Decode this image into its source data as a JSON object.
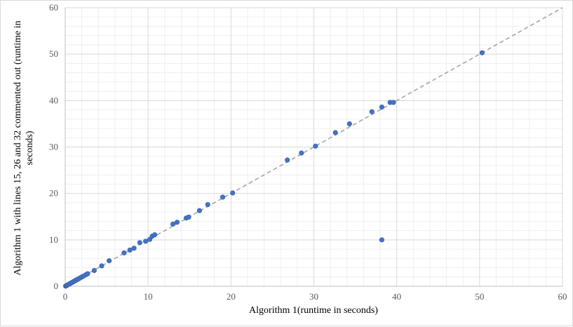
{
  "chart_data": {
    "type": "scatter",
    "title": "",
    "xlabel": "Algorithm 1(runtime in seconds)",
    "ylabel_lines": [
      "Algorithm 1 with lines 15, 26 and 32 commented out (runtime in",
      "seconds)"
    ],
    "xlim": [
      0,
      60
    ],
    "ylim": [
      0,
      60
    ],
    "major_step": 10,
    "minor_step": 2,
    "grid": true,
    "legend": "none",
    "marker_color": "#4472c4",
    "reference_line": {
      "style": "dashed",
      "color": "#a6a6a6",
      "from": [
        0,
        0
      ],
      "to": [
        60,
        60
      ]
    },
    "x_ticks": [
      "0",
      "10",
      "20",
      "30",
      "40",
      "50",
      "60"
    ],
    "y_ticks": [
      "0",
      "10",
      "20",
      "30",
      "40",
      "50",
      "60"
    ],
    "points": [
      [
        0.05,
        0.05
      ],
      [
        0.1,
        0.1
      ],
      [
        0.15,
        0.15
      ],
      [
        0.2,
        0.2
      ],
      [
        0.3,
        0.3
      ],
      [
        0.4,
        0.4
      ],
      [
        0.5,
        0.5
      ],
      [
        0.6,
        0.6
      ],
      [
        0.7,
        0.7
      ],
      [
        0.8,
        0.8
      ],
      [
        0.9,
        0.9
      ],
      [
        1.0,
        1.0
      ],
      [
        1.1,
        1.1
      ],
      [
        1.2,
        1.2
      ],
      [
        1.3,
        1.3
      ],
      [
        1.4,
        1.4
      ],
      [
        1.5,
        1.5
      ],
      [
        1.6,
        1.6
      ],
      [
        1.8,
        1.8
      ],
      [
        2.0,
        2.0
      ],
      [
        2.2,
        2.2
      ],
      [
        2.5,
        2.5
      ],
      [
        2.7,
        2.7
      ],
      [
        3.5,
        3.4
      ],
      [
        4.4,
        4.4
      ],
      [
        5.3,
        5.5
      ],
      [
        7.1,
        7.2
      ],
      [
        7.8,
        7.8
      ],
      [
        8.3,
        8.2
      ],
      [
        9.0,
        9.4
      ],
      [
        9.7,
        9.7
      ],
      [
        10.2,
        10.1
      ],
      [
        10.5,
        10.8
      ],
      [
        10.8,
        11.1
      ],
      [
        13.0,
        13.4
      ],
      [
        13.5,
        13.8
      ],
      [
        14.6,
        14.7
      ],
      [
        14.9,
        14.9
      ],
      [
        16.2,
        16.3
      ],
      [
        17.2,
        17.6
      ],
      [
        19.0,
        19.2
      ],
      [
        20.2,
        20.1
      ],
      [
        26.8,
        27.2
      ],
      [
        28.5,
        28.7
      ],
      [
        30.2,
        30.2
      ],
      [
        32.6,
        33.1
      ],
      [
        34.3,
        35.0
      ],
      [
        37.0,
        37.6
      ],
      [
        38.2,
        38.6
      ],
      [
        39.2,
        39.6
      ],
      [
        39.6,
        39.6
      ],
      [
        38.2,
        10.0
      ],
      [
        50.3,
        50.3
      ]
    ]
  }
}
